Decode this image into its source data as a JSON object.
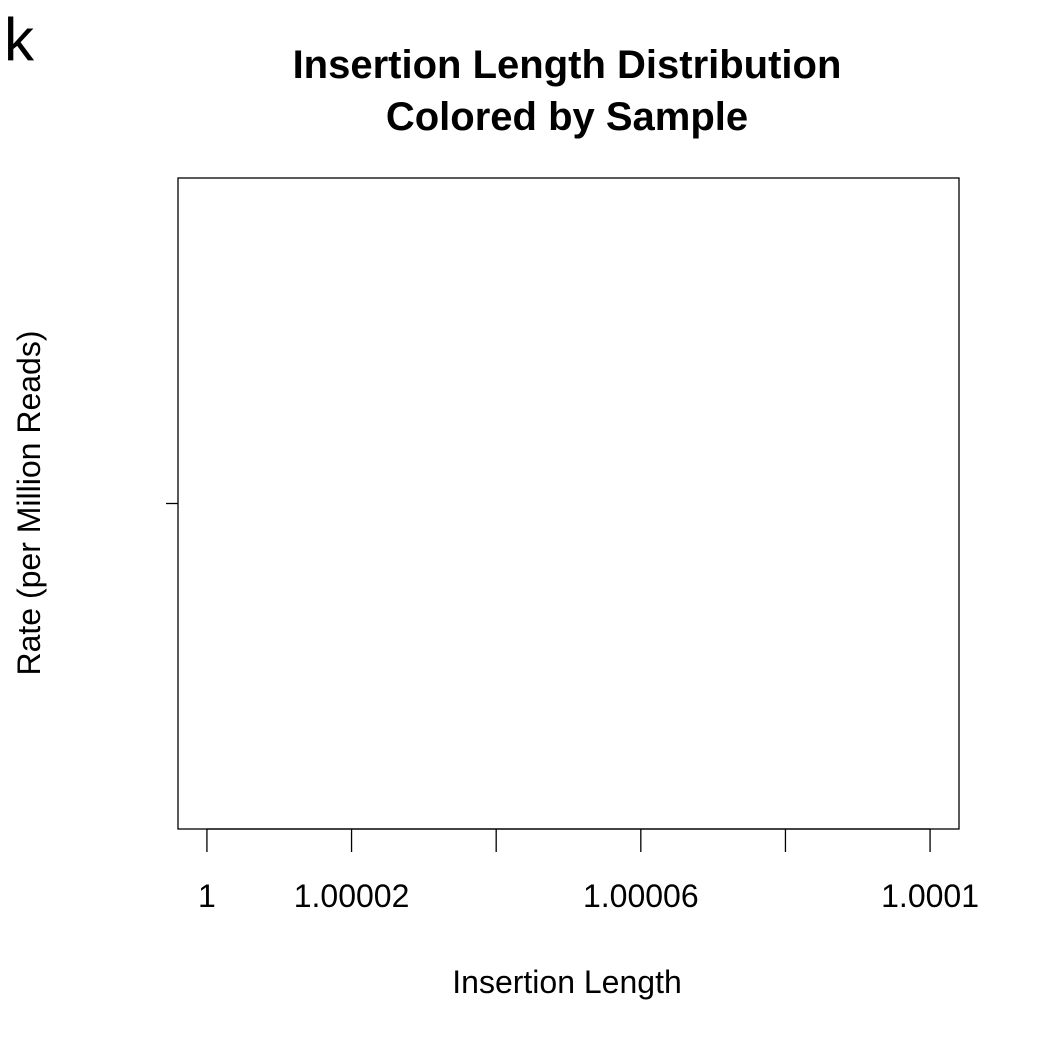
{
  "panel_letter": "k",
  "chart_data": {
    "type": "line",
    "title": "Insertion Length Distribution",
    "subtitle": "Colored by Sample",
    "xlabel": "Insertion Length",
    "ylabel": "Rate (per Million Reads)",
    "xlim": [
      0.999996,
      1.000104
    ],
    "ylim": [
      0,
      2
    ],
    "x_ticks": [
      1,
      1.00002,
      1.00004,
      1.00006,
      1.00008,
      1.0001
    ],
    "x_tick_labels": [
      "1",
      "1.00002",
      "",
      "1.00006",
      "",
      "1.0001"
    ],
    "y_ticks": [
      1
    ],
    "y_tick_labels": [
      ""
    ],
    "grid": false,
    "series": [],
    "colors": {
      "axis": "#000000",
      "background": "#ffffff"
    }
  }
}
